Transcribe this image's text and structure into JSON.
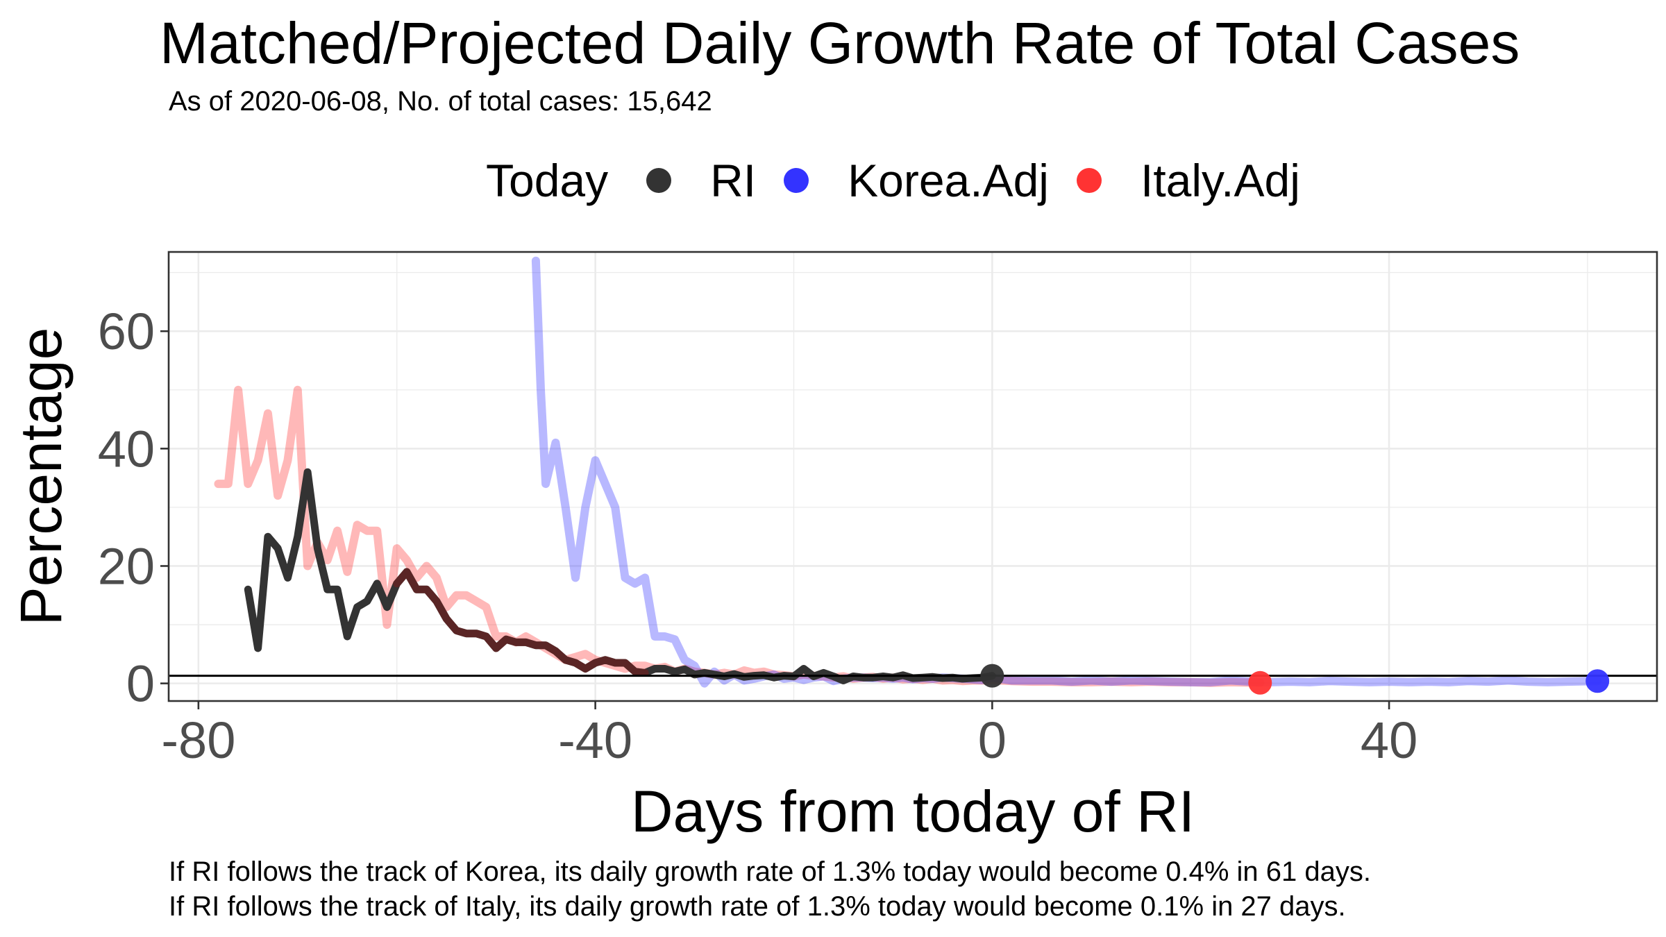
{
  "chart_data": {
    "type": "line",
    "title": "Matched/Projected Daily Growth Rate of Total Cases",
    "subtitle": "As of 2020-06-08, No. of total cases: 15,642",
    "xlabel": "Days from today of RI",
    "ylabel": "Percentage",
    "xlim": [
      -83,
      67
    ],
    "ylim": [
      -3,
      73.5
    ],
    "x_ticks": [
      -80,
      -40,
      0,
      40
    ],
    "y_ticks": [
      0,
      20,
      40,
      60
    ],
    "grid": true,
    "legend_placement": "top",
    "legend_title": "Today",
    "reference_line_y": 1.3,
    "series": [
      {
        "name": "RI",
        "color": "#333333",
        "points": [
          [
            -75,
            16
          ],
          [
            -74,
            6
          ],
          [
            -73,
            25
          ],
          [
            -72,
            23
          ],
          [
            -71,
            18
          ],
          [
            -70,
            25
          ],
          [
            -69,
            36
          ],
          [
            -68,
            23
          ],
          [
            -67,
            16
          ],
          [
            -66,
            16
          ],
          [
            -65,
            8
          ],
          [
            -64,
            13
          ],
          [
            -63,
            14
          ],
          [
            -62,
            17
          ],
          [
            -61,
            13
          ],
          [
            -60,
            17
          ],
          [
            -59,
            19
          ],
          [
            -58,
            16
          ],
          [
            -57,
            16
          ],
          [
            -56,
            14
          ],
          [
            -55,
            11
          ],
          [
            -54,
            9
          ],
          [
            -53,
            8.5
          ],
          [
            -52,
            8.5
          ],
          [
            -51,
            8
          ],
          [
            -50,
            6
          ],
          [
            -49,
            7.5
          ],
          [
            -48,
            7
          ],
          [
            -47,
            7
          ],
          [
            -46,
            6.5
          ],
          [
            -45,
            6.5
          ],
          [
            -44,
            5.5
          ],
          [
            -43,
            4
          ],
          [
            -42,
            3.5
          ],
          [
            -41,
            2.5
          ],
          [
            -40,
            3.5
          ],
          [
            -39,
            4
          ],
          [
            -38,
            3.5
          ],
          [
            -37,
            3.5
          ],
          [
            -36,
            2
          ],
          [
            -35,
            1.8
          ],
          [
            -34,
            2.5
          ],
          [
            -33,
            2.5
          ],
          [
            -32,
            2
          ],
          [
            -31,
            2.4
          ],
          [
            -30,
            1.5
          ],
          [
            -29,
            1.8
          ],
          [
            -28,
            1.5
          ],
          [
            -27,
            1.2
          ],
          [
            -26,
            1.6
          ],
          [
            -25,
            1.1
          ],
          [
            -24,
            1.3
          ],
          [
            -23,
            1.4
          ],
          [
            -22,
            1.0
          ],
          [
            -21,
            1.3
          ],
          [
            -20,
            1.2
          ],
          [
            -19,
            2.5
          ],
          [
            -18,
            1.2
          ],
          [
            -17,
            1.8
          ],
          [
            -16,
            1.2
          ],
          [
            -15,
            0.5
          ],
          [
            -14,
            1.2
          ],
          [
            -13,
            1.0
          ],
          [
            -12,
            1.0
          ],
          [
            -11,
            1.2
          ],
          [
            -10,
            1.0
          ],
          [
            -9,
            1.4
          ],
          [
            -8,
            0.9
          ],
          [
            -7,
            1.0
          ],
          [
            -6,
            1.1
          ],
          [
            -5,
            0.9
          ],
          [
            -4,
            1.0
          ],
          [
            -3,
            0.8
          ],
          [
            -2,
            0.9
          ],
          [
            -1,
            1.0
          ],
          [
            0,
            1.3
          ]
        ]
      },
      {
        "name": "Korea.Adj",
        "color": "#3333ff",
        "points": [
          [
            -46,
            72
          ],
          [
            -45.5,
            50
          ],
          [
            -45,
            34
          ],
          [
            -44,
            41
          ],
          [
            -43,
            30
          ],
          [
            -42,
            18
          ],
          [
            -41,
            30
          ],
          [
            -40,
            38
          ],
          [
            -39,
            34
          ],
          [
            -38,
            30
          ],
          [
            -37,
            18
          ],
          [
            -36,
            17
          ],
          [
            -35,
            18
          ],
          [
            -34,
            8
          ],
          [
            -33,
            8
          ],
          [
            -32,
            7.5
          ],
          [
            -31,
            4
          ],
          [
            -30,
            3
          ],
          [
            -29,
            0
          ],
          [
            -28,
            2
          ],
          [
            -27,
            0.5
          ],
          [
            -26,
            1.5
          ],
          [
            -25,
            0.5
          ],
          [
            -24,
            0.8
          ],
          [
            -23,
            1.2
          ],
          [
            -22,
            1.5
          ],
          [
            -21,
            0.8
          ],
          [
            -20,
            1.0
          ],
          [
            -19,
            0.6
          ],
          [
            -18,
            1.0
          ],
          [
            -17,
            1.2
          ],
          [
            -16,
            0.4
          ],
          [
            -15,
            0.8
          ],
          [
            -14,
            1.0
          ],
          [
            -13,
            1.0
          ],
          [
            -12,
            0.9
          ],
          [
            -11,
            1.0
          ],
          [
            -10,
            0.8
          ],
          [
            -9,
            1.0
          ],
          [
            -8,
            0.7
          ],
          [
            -7,
            0.9
          ],
          [
            -6,
            0.8
          ],
          [
            -5,
            1.0
          ],
          [
            -4,
            0.9
          ],
          [
            -3,
            0.8
          ],
          [
            -2,
            0.7
          ],
          [
            -1,
            0.6
          ],
          [
            0,
            1.0
          ],
          [
            2,
            0.5
          ],
          [
            4,
            0.5
          ],
          [
            6,
            0.5
          ],
          [
            8,
            0.3
          ],
          [
            10,
            0.5
          ],
          [
            12,
            0.3
          ],
          [
            14,
            0.5
          ],
          [
            16,
            0.4
          ],
          [
            18,
            0.3
          ],
          [
            20,
            0.2
          ],
          [
            22,
            0.2
          ],
          [
            24,
            0.5
          ],
          [
            26,
            0.3
          ],
          [
            28,
            0.2
          ],
          [
            30,
            0.3
          ],
          [
            32,
            0.2
          ],
          [
            34,
            0.4
          ],
          [
            36,
            0.3
          ],
          [
            38,
            0.2
          ],
          [
            40,
            0.3
          ],
          [
            42,
            0.2
          ],
          [
            44,
            0.3
          ],
          [
            46,
            0.2
          ],
          [
            48,
            0.4
          ],
          [
            50,
            0.3
          ],
          [
            52,
            0.5
          ],
          [
            54,
            0.3
          ],
          [
            56,
            0.2
          ],
          [
            58,
            0.3
          ],
          [
            61,
            0.4
          ]
        ]
      },
      {
        "name": "Italy.Adj",
        "color": "#ff3333",
        "points": [
          [
            -78,
            34
          ],
          [
            -77,
            34
          ],
          [
            -76,
            50
          ],
          [
            -75,
            34
          ],
          [
            -74,
            38
          ],
          [
            -73,
            46
          ],
          [
            -72,
            32
          ],
          [
            -71,
            38
          ],
          [
            -70,
            50
          ],
          [
            -69,
            20
          ],
          [
            -68,
            24
          ],
          [
            -67,
            21
          ],
          [
            -66,
            26
          ],
          [
            -65,
            19
          ],
          [
            -64,
            27
          ],
          [
            -63,
            26
          ],
          [
            -62,
            26
          ],
          [
            -61,
            10
          ],
          [
            -60,
            23
          ],
          [
            -59,
            21
          ],
          [
            -58,
            18
          ],
          [
            -57,
            20
          ],
          [
            -56,
            18
          ],
          [
            -55,
            13
          ],
          [
            -54,
            15
          ],
          [
            -53,
            15
          ],
          [
            -52,
            14
          ],
          [
            -51,
            13
          ],
          [
            -50,
            8
          ],
          [
            -49,
            8
          ],
          [
            -48,
            7
          ],
          [
            -47,
            8
          ],
          [
            -46,
            7
          ],
          [
            -45,
            6
          ],
          [
            -44,
            5
          ],
          [
            -43,
            4
          ],
          [
            -42,
            4.5
          ],
          [
            -41,
            5
          ],
          [
            -40,
            4
          ],
          [
            -39,
            3.5
          ],
          [
            -38,
            3
          ],
          [
            -37,
            2.5
          ],
          [
            -36,
            3
          ],
          [
            -35,
            3
          ],
          [
            -34,
            2.5
          ],
          [
            -33,
            2.8
          ],
          [
            -32,
            2
          ],
          [
            -31,
            2.5
          ],
          [
            -30,
            2
          ],
          [
            -29,
            1.8
          ],
          [
            -28,
            1.5
          ],
          [
            -27,
            1.8
          ],
          [
            -26,
            1.5
          ],
          [
            -25,
            2.2
          ],
          [
            -24,
            1.8
          ],
          [
            -23,
            2
          ],
          [
            -22,
            1.5
          ],
          [
            -21,
            1.4
          ],
          [
            -20,
            1.2
          ],
          [
            -19,
            1.5
          ],
          [
            -18,
            1.3
          ],
          [
            -17,
            1.2
          ],
          [
            -16,
            1.0
          ],
          [
            -15,
            1.2
          ],
          [
            -14,
            0.8
          ],
          [
            -13,
            1.0
          ],
          [
            -12,
            1.1
          ],
          [
            -11,
            0.8
          ],
          [
            -10,
            1.0
          ],
          [
            -9,
            0.7
          ],
          [
            -8,
            0.8
          ],
          [
            -7,
            0.6
          ],
          [
            -6,
            0.8
          ],
          [
            -5,
            0.5
          ],
          [
            -4,
            0.6
          ],
          [
            -3,
            0.4
          ],
          [
            -2,
            0.5
          ],
          [
            -1,
            0.5
          ],
          [
            0,
            0.6
          ],
          [
            2,
            0.4
          ],
          [
            4,
            0.3
          ],
          [
            6,
            0.3
          ],
          [
            8,
            0.2
          ],
          [
            10,
            0.2
          ],
          [
            12,
            0.3
          ],
          [
            14,
            0.2
          ],
          [
            16,
            0.3
          ],
          [
            18,
            0.2
          ],
          [
            20,
            0.2
          ],
          [
            22,
            0.1
          ],
          [
            24,
            0.2
          ],
          [
            27,
            0.1
          ]
        ]
      },
      {
        "name": "Today markers",
        "points": []
      }
    ],
    "markers": [
      {
        "series": "RI",
        "x": 0,
        "y": 1.3
      },
      {
        "series": "Korea.Adj",
        "x": 61,
        "y": 0.4
      },
      {
        "series": "Italy.Adj",
        "x": 27,
        "y": 0.1
      }
    ]
  },
  "legend": {
    "title": "Today",
    "items": [
      {
        "label": "RI",
        "color": "#333333"
      },
      {
        "label": "Korea.Adj",
        "color": "#3333ff"
      },
      {
        "label": "Italy.Adj",
        "color": "#ff3333"
      }
    ]
  },
  "captions": {
    "korea": "If RI follows the track of Korea, its daily growth rate of 1.3% today would become 0.4% in 61 days.",
    "italy": "If RI follows the track of Italy, its daily growth rate of 1.3% today would become 0.1% in 27 days."
  }
}
